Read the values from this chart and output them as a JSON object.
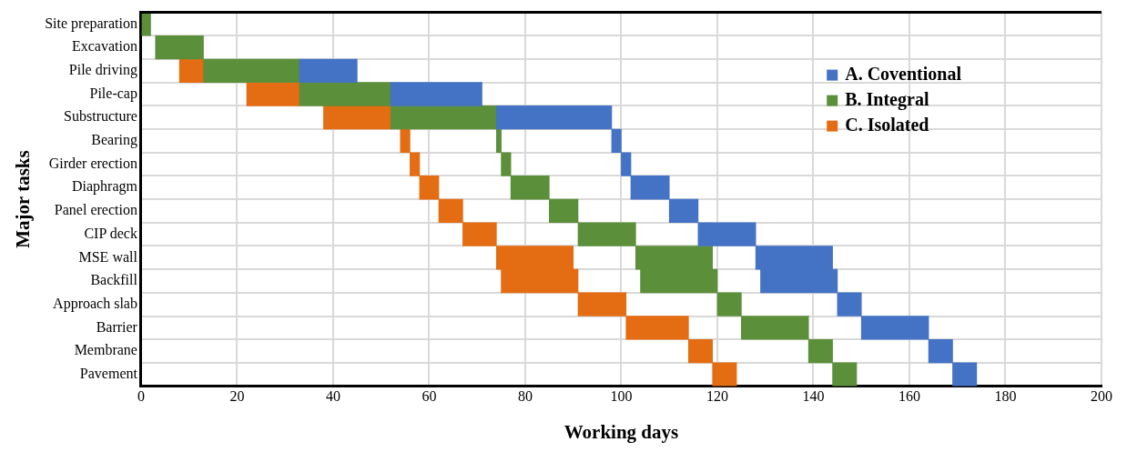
{
  "chart_data": {
    "type": "bar",
    "orientation": "horizontal",
    "xlabel": "Working days",
    "ylabel": "Major tasks",
    "categories": [
      "Site preparation",
      "Excavation",
      "Pile driving",
      "Pile-cap",
      "Substructure",
      "Bearing",
      "Girder erection",
      "Diaphragm",
      "Panel erection",
      "CIP deck",
      "MSE wall",
      "Backfill",
      "Approach slab",
      "Barrier",
      "Membrane",
      "Pavement"
    ],
    "series": [
      {
        "name": "A. Coventional",
        "color": "#4472c4",
        "base": [
          null,
          null,
          33,
          52,
          74,
          98,
          100,
          102,
          110,
          116,
          128,
          129,
          145,
          150,
          164,
          169
        ],
        "values": [
          null,
          null,
          12,
          19,
          24,
          2,
          2,
          8,
          6,
          12,
          16,
          16,
          5,
          14,
          5,
          5
        ]
      },
      {
        "name": "B. Integral",
        "color": "#5b8f3a",
        "base": [
          0,
          3,
          13,
          33,
          52,
          74,
          75,
          77,
          85,
          91,
          103,
          104,
          120,
          125,
          139,
          144
        ],
        "values": [
          2,
          10,
          20,
          19,
          22,
          1,
          2,
          8,
          6,
          12,
          16,
          16,
          5,
          14,
          5,
          5
        ]
      },
      {
        "name": "C. Isolated",
        "color": "#e46c12",
        "base": [
          null,
          null,
          8,
          22,
          38,
          54,
          56,
          58,
          62,
          67,
          74,
          75,
          91,
          101,
          114,
          119
        ],
        "values": [
          null,
          null,
          5,
          11,
          14,
          2,
          2,
          4,
          5,
          7,
          16,
          16,
          10,
          13,
          5,
          5
        ]
      }
    ],
    "xlim": [
      0,
      200
    ],
    "xticks": [
      0,
      20,
      40,
      60,
      80,
      100,
      120,
      140,
      160,
      180,
      200
    ],
    "grid": true,
    "legend": "top right"
  }
}
